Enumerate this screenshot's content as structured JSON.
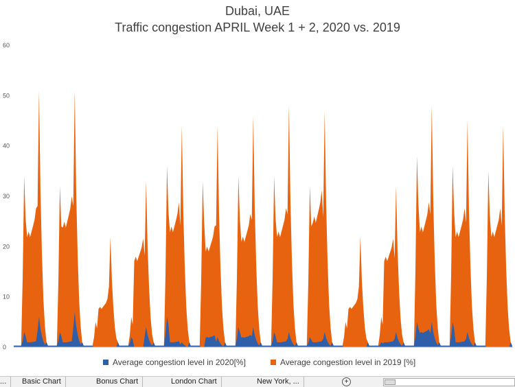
{
  "chart_data": {
    "type": "area",
    "title": "Dubai, UAE",
    "subtitle": "Traffic congestion APRIL Week 1 + 2, 2020 vs. 2019",
    "xlabel": "",
    "ylabel": "",
    "ylim": [
      0,
      60
    ],
    "yticks": [
      "0",
      "10",
      "20",
      "30",
      "40",
      "50",
      "60"
    ],
    "grid": false,
    "legend_position": "bottom",
    "days": 14,
    "series": [
      {
        "name": "Average congestion level in 2019 [%]",
        "color": "#e8630f",
        "days": [
          {
            "morning": 34,
            "midday": 23,
            "evening": 51
          },
          {
            "morning": 32,
            "midday": 25,
            "evening": 51
          },
          {
            "morning": 5,
            "midday": 8,
            "evening": 22
          },
          {
            "morning": 6,
            "midday": 18,
            "evening": 33
          },
          {
            "morning": 36,
            "midday": 24,
            "evening": 44
          },
          {
            "morning": 33,
            "midday": 20,
            "evening": 44
          },
          {
            "morning": 34,
            "midday": 22,
            "evening": 46
          },
          {
            "morning": 34,
            "midday": 23,
            "evening": 48
          },
          {
            "morning": 32,
            "midday": 26,
            "evening": 47
          },
          {
            "morning": 5,
            "midday": 8,
            "evening": 22
          },
          {
            "morning": 6,
            "midday": 18,
            "evening": 32
          },
          {
            "morning": 38,
            "midday": 24,
            "evening": 48
          },
          {
            "morning": 36,
            "midday": 23,
            "evening": 45
          },
          {
            "morning": 35,
            "midday": 23,
            "evening": 44
          }
        ]
      },
      {
        "name": "Average congestion level in 2020[%]",
        "color": "#2e5fa8",
        "days": [
          {
            "morning": 3,
            "midday": 1,
            "evening": 6
          },
          {
            "morning": 3,
            "midday": 1,
            "evening": 7
          },
          {
            "morning": 0,
            "midday": 0,
            "evening": 0
          },
          {
            "morning": 2,
            "midday": 0,
            "evening": 4
          },
          {
            "morning": 6,
            "midday": 1,
            "evening": 1
          },
          {
            "morning": 0,
            "midday": 2,
            "evening": 2
          },
          {
            "morning": 4,
            "midday": 2,
            "evening": 4
          },
          {
            "morning": 3,
            "midday": 1,
            "evening": 3
          },
          {
            "morning": 2,
            "midday": 1,
            "evening": 3
          },
          {
            "morning": 0,
            "midday": 0,
            "evening": 0
          },
          {
            "morning": 1,
            "midday": 1,
            "evening": 3
          },
          {
            "morning": 5,
            "midday": 3,
            "evening": 5
          },
          {
            "morning": 5,
            "midday": 1,
            "evening": 3
          },
          {
            "morning": 0,
            "midday": 0,
            "evening": 0
          }
        ]
      }
    ]
  },
  "legend": {
    "item_2020": "Average congestion level in 2020[%]",
    "item_2019": "Average congestion level in 2019 [%]"
  },
  "tabbar": {
    "tabs": [
      "...",
      "Basic Chart",
      "Bonus Chart",
      "London Chart",
      "New York, ..."
    ],
    "add_sheet_icon": "plus-circle-icon"
  }
}
